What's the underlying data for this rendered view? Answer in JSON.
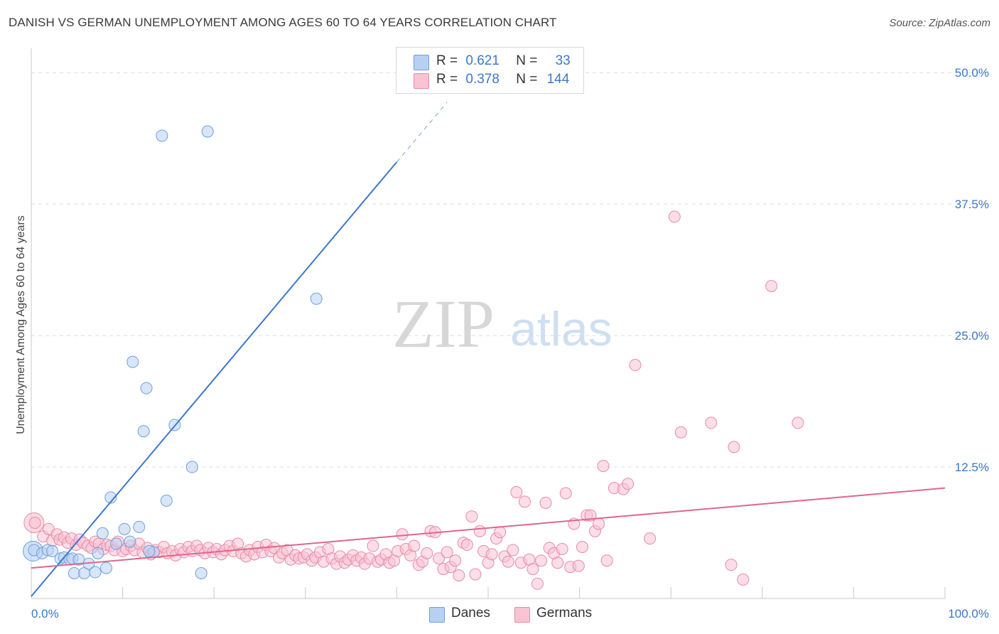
{
  "title": "DANISH VS GERMAN UNEMPLOYMENT AMONG AGES 60 TO 64 YEARS CORRELATION CHART",
  "source": "Source: ZipAtlas.com",
  "watermark": {
    "zip": "ZIP",
    "atlas": "atlas"
  },
  "legend": {
    "danes": {
      "r_label": "R =",
      "r_value": "0.621",
      "n_label": "N =",
      "n_value": "33"
    },
    "germans": {
      "r_label": "R =",
      "r_value": "0.378",
      "n_label": "N =",
      "n_value": "144"
    }
  },
  "colors": {
    "danes_fill": "#b8d1f3",
    "danes_stroke": "#6f9fdc",
    "danes_line": "#3a78d0",
    "germans_fill": "#f8c3d3",
    "germans_stroke": "#e98aa8",
    "germans_line": "#e0668f",
    "tick_text": "#3a78c9",
    "grid": "#dcdcdc"
  },
  "chart_data": {
    "type": "scatter",
    "title": "DANISH VS GERMAN UNEMPLOYMENT AMONG AGES 60 TO 64 YEARS CORRELATION CHART",
    "xlabel": "",
    "ylabel": "Unemployment Among Ages 60 to 64 years",
    "xlim": [
      0,
      100
    ],
    "ylim": [
      0,
      51.5
    ],
    "x_tick_labels": [
      "0.0%",
      "100.0%"
    ],
    "y_ticks": [
      12.5,
      25.0,
      37.5,
      50.0
    ],
    "y_tick_labels": [
      "12.5%",
      "25.0%",
      "37.5%",
      "50.0%"
    ],
    "legend_position": "top-center",
    "series": [
      {
        "name": "Danes",
        "r": 0.621,
        "n": 33,
        "trend": {
          "x0": 0,
          "y0": 0.2,
          "x1": 40,
          "y1": 41.5,
          "dash_to_x": 45.5
        },
        "points": [
          [
            0.3,
            4.6
          ],
          [
            1.2,
            4.3
          ],
          [
            1.8,
            4.6
          ],
          [
            2.3,
            4.5
          ],
          [
            3.2,
            3.8
          ],
          [
            3.6,
            3.9
          ],
          [
            4.2,
            3.7
          ],
          [
            4.5,
            3.8
          ],
          [
            4.7,
            2.4
          ],
          [
            5.2,
            3.7
          ],
          [
            5.8,
            2.4
          ],
          [
            6.3,
            3.3
          ],
          [
            7.0,
            2.5
          ],
          [
            7.3,
            4.3
          ],
          [
            7.8,
            6.2
          ],
          [
            8.2,
            2.9
          ],
          [
            8.7,
            9.6
          ],
          [
            9.3,
            5.2
          ],
          [
            10.2,
            6.6
          ],
          [
            10.8,
            5.4
          ],
          [
            11.1,
            22.5
          ],
          [
            11.8,
            6.8
          ],
          [
            12.3,
            15.9
          ],
          [
            12.6,
            20.0
          ],
          [
            13.4,
            4.4
          ],
          [
            14.3,
            44.0
          ],
          [
            14.8,
            9.3
          ],
          [
            15.7,
            16.5
          ],
          [
            17.6,
            12.5
          ],
          [
            18.6,
            2.4
          ],
          [
            19.3,
            44.4
          ],
          [
            31.2,
            28.5
          ],
          [
            12.9,
            4.5
          ]
        ],
        "big_point": [
          0.2,
          4.5
        ]
      },
      {
        "name": "Germans",
        "r": 0.378,
        "n": 144,
        "trend": {
          "x0": 0,
          "y0": 2.9,
          "x1": 100,
          "y1": 10.5
        },
        "points": [
          [
            0.4,
            7.2
          ],
          [
            1.3,
            5.9
          ],
          [
            1.9,
            6.6
          ],
          [
            2.3,
            5.5
          ],
          [
            2.8,
            6.1
          ],
          [
            3.1,
            5.6
          ],
          [
            3.6,
            5.8
          ],
          [
            4.0,
            5.3
          ],
          [
            4.4,
            5.7
          ],
          [
            4.9,
            5.1
          ],
          [
            5.3,
            5.6
          ],
          [
            5.7,
            5.3
          ],
          [
            6.2,
            5.0
          ],
          [
            6.6,
            4.8
          ],
          [
            7.0,
            5.4
          ],
          [
            7.4,
            5.2
          ],
          [
            7.9,
            4.7
          ],
          [
            8.3,
            5.1
          ],
          [
            8.7,
            5.0
          ],
          [
            9.1,
            4.6
          ],
          [
            9.5,
            5.4
          ],
          [
            10.0,
            4.5
          ],
          [
            10.4,
            4.7
          ],
          [
            10.9,
            5.0
          ],
          [
            11.3,
            4.6
          ],
          [
            11.8,
            5.2
          ],
          [
            12.2,
            4.4
          ],
          [
            12.7,
            4.8
          ],
          [
            13.1,
            4.2
          ],
          [
            13.6,
            4.6
          ],
          [
            14.0,
            4.4
          ],
          [
            14.5,
            4.9
          ],
          [
            14.9,
            4.3
          ],
          [
            15.4,
            4.5
          ],
          [
            15.8,
            4.1
          ],
          [
            16.3,
            4.7
          ],
          [
            16.7,
            4.4
          ],
          [
            17.2,
            4.9
          ],
          [
            17.6,
            4.5
          ],
          [
            18.1,
            5.0
          ],
          [
            18.5,
            4.6
          ],
          [
            19.0,
            4.3
          ],
          [
            19.4,
            4.8
          ],
          [
            19.9,
            4.4
          ],
          [
            20.3,
            4.7
          ],
          [
            20.8,
            4.2
          ],
          [
            21.2,
            4.6
          ],
          [
            21.7,
            5.0
          ],
          [
            22.1,
            4.5
          ],
          [
            22.6,
            5.2
          ],
          [
            23.0,
            4.3
          ],
          [
            23.5,
            4.0
          ],
          [
            23.9,
            4.6
          ],
          [
            24.4,
            4.2
          ],
          [
            24.8,
            4.9
          ],
          [
            25.3,
            4.4
          ],
          [
            25.7,
            5.1
          ],
          [
            26.2,
            4.5
          ],
          [
            26.6,
            4.8
          ],
          [
            27.1,
            3.9
          ],
          [
            27.5,
            4.3
          ],
          [
            28.0,
            4.6
          ],
          [
            28.4,
            3.7
          ],
          [
            28.9,
            4.1
          ],
          [
            29.3,
            3.8
          ],
          [
            29.8,
            3.9
          ],
          [
            30.2,
            4.2
          ],
          [
            30.7,
            3.6
          ],
          [
            31.1,
            3.9
          ],
          [
            31.6,
            4.4
          ],
          [
            32.0,
            3.5
          ],
          [
            32.5,
            4.7
          ],
          [
            32.9,
            3.8
          ],
          [
            33.4,
            3.3
          ],
          [
            33.8,
            4.0
          ],
          [
            34.3,
            3.4
          ],
          [
            34.7,
            3.7
          ],
          [
            35.2,
            4.1
          ],
          [
            35.6,
            3.6
          ],
          [
            36.1,
            3.9
          ],
          [
            36.5,
            3.3
          ],
          [
            37.0,
            3.8
          ],
          [
            37.4,
            5.0
          ],
          [
            37.9,
            3.5
          ],
          [
            38.3,
            3.7
          ],
          [
            38.8,
            4.2
          ],
          [
            39.2,
            3.4
          ],
          [
            39.7,
            3.6
          ],
          [
            40.1,
            4.5
          ],
          [
            40.6,
            6.1
          ],
          [
            41.0,
            4.7
          ],
          [
            41.5,
            4.1
          ],
          [
            41.9,
            5.0
          ],
          [
            42.4,
            3.2
          ],
          [
            42.8,
            3.5
          ],
          [
            43.3,
            4.3
          ],
          [
            43.7,
            6.4
          ],
          [
            44.2,
            6.3
          ],
          [
            44.6,
            3.8
          ],
          [
            45.1,
            2.8
          ],
          [
            45.5,
            4.4
          ],
          [
            45.9,
            3.0
          ],
          [
            46.4,
            3.6
          ],
          [
            46.8,
            2.2
          ],
          [
            47.3,
            5.3
          ],
          [
            47.7,
            5.1
          ],
          [
            48.2,
            7.8
          ],
          [
            48.6,
            2.3
          ],
          [
            49.1,
            6.4
          ],
          [
            49.5,
            4.5
          ],
          [
            50.0,
            3.4
          ],
          [
            50.4,
            4.2
          ],
          [
            50.9,
            5.7
          ],
          [
            51.3,
            6.3
          ],
          [
            51.8,
            4.0
          ],
          [
            52.2,
            3.5
          ],
          [
            52.7,
            4.6
          ],
          [
            53.1,
            10.1
          ],
          [
            53.6,
            3.4
          ],
          [
            54.0,
            9.2
          ],
          [
            54.5,
            3.7
          ],
          [
            54.9,
            2.8
          ],
          [
            55.4,
            1.4
          ],
          [
            55.8,
            3.6
          ],
          [
            56.3,
            9.1
          ],
          [
            56.7,
            4.8
          ],
          [
            57.2,
            4.3
          ],
          [
            57.6,
            3.4
          ],
          [
            58.1,
            4.7
          ],
          [
            58.5,
            10.0
          ],
          [
            59.0,
            3.0
          ],
          [
            59.4,
            7.1
          ],
          [
            59.9,
            3.1
          ],
          [
            60.3,
            4.9
          ],
          [
            60.8,
            7.9
          ],
          [
            61.2,
            7.9
          ],
          [
            61.7,
            6.4
          ],
          [
            62.1,
            7.1
          ],
          [
            62.6,
            12.6
          ],
          [
            63.0,
            3.6
          ],
          [
            63.8,
            10.5
          ],
          [
            64.8,
            10.4
          ],
          [
            65.3,
            10.9
          ],
          [
            66.1,
            22.2
          ],
          [
            67.7,
            5.7
          ],
          [
            70.4,
            36.3
          ],
          [
            71.1,
            15.8
          ],
          [
            74.4,
            16.7
          ],
          [
            76.6,
            3.2
          ],
          [
            76.9,
            14.4
          ],
          [
            77.9,
            1.8
          ],
          [
            81.0,
            29.7
          ],
          [
            83.9,
            16.7
          ]
        ],
        "big_point": [
          0.3,
          7.2
        ]
      }
    ]
  },
  "bottom_legend": {
    "danes": "Danes",
    "germans": "Germans"
  },
  "axis": {
    "x_min_label": "0.0%",
    "x_max_label": "100.0%"
  }
}
